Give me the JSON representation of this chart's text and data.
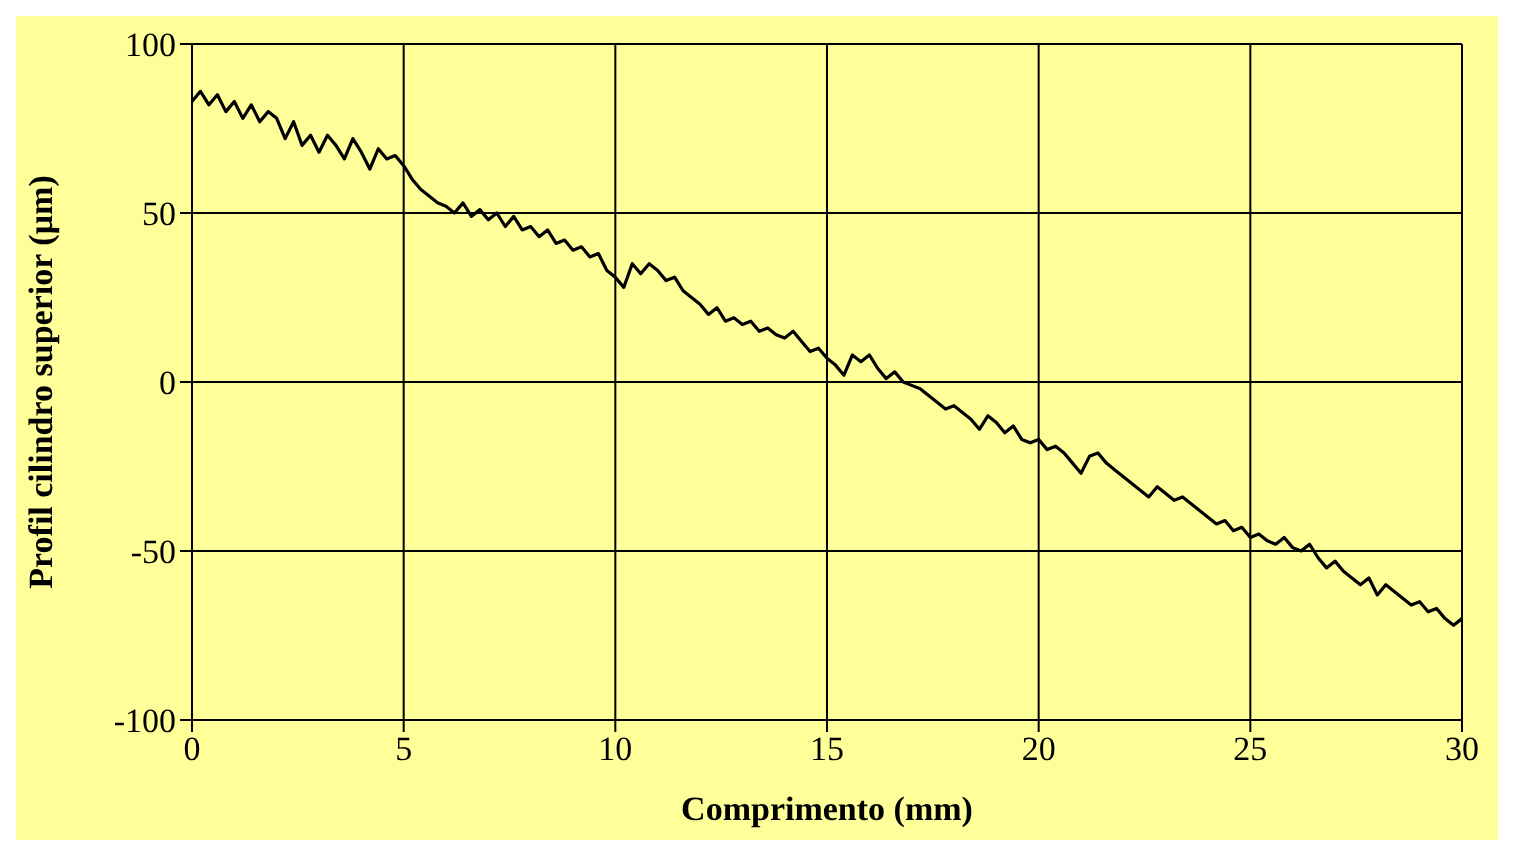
{
  "chart_data": {
    "type": "line",
    "xlabel": "Comprimento (mm)",
    "ylabel": "Profil cilindro superior (µm)",
    "xlim": [
      0,
      30
    ],
    "ylim": [
      -100,
      100
    ],
    "xticks": [
      0,
      5,
      10,
      15,
      20,
      25,
      30
    ],
    "yticks": [
      -100,
      -50,
      0,
      50,
      100
    ],
    "grid": true,
    "marker": "none",
    "line_style": "solid",
    "series": [
      {
        "color": "#000000",
        "x": [
          0,
          0.2,
          0.4,
          0.6,
          0.8,
          1,
          1.2,
          1.4,
          1.6,
          1.8,
          2,
          2.2,
          2.4,
          2.6,
          2.8,
          3,
          3.2,
          3.4,
          3.6,
          3.8,
          4,
          4.2,
          4.4,
          4.6,
          4.8,
          5,
          5.2,
          5.4,
          5.6,
          5.8,
          6,
          6.2,
          6.4,
          6.6,
          6.8,
          7,
          7.2,
          7.4,
          7.6,
          7.8,
          8,
          8.2,
          8.4,
          8.6,
          8.8,
          9,
          9.2,
          9.4,
          9.6,
          9.8,
          10,
          10.2,
          10.4,
          10.6,
          10.8,
          11,
          11.2,
          11.4,
          11.6,
          11.8,
          12,
          12.2,
          12.4,
          12.6,
          12.8,
          13,
          13.2,
          13.4,
          13.6,
          13.8,
          14,
          14.2,
          14.4,
          14.6,
          14.8,
          15,
          15.2,
          15.4,
          15.6,
          15.8,
          16,
          16.2,
          16.4,
          16.6,
          16.8,
          17,
          17.2,
          17.4,
          17.6,
          17.8,
          18,
          18.2,
          18.4,
          18.6,
          18.8,
          19,
          19.2,
          19.4,
          19.6,
          19.8,
          20,
          20.2,
          20.4,
          20.6,
          20.8,
          21,
          21.2,
          21.4,
          21.6,
          21.8,
          22,
          22.2,
          22.4,
          22.6,
          22.8,
          23,
          23.2,
          23.4,
          23.6,
          23.8,
          24,
          24.2,
          24.4,
          24.6,
          24.8,
          25,
          25.2,
          25.4,
          25.6,
          25.8,
          26,
          26.2,
          26.4,
          26.6,
          26.8,
          27,
          27.2,
          27.4,
          27.6,
          27.8,
          28,
          28.2,
          28.4,
          28.6,
          28.8,
          29,
          29.2,
          29.4,
          29.6,
          29.8,
          30
        ],
        "values": [
          83,
          86,
          82,
          85,
          80,
          83,
          78,
          82,
          77,
          80,
          78,
          72,
          77,
          70,
          73,
          68,
          73,
          70,
          66,
          72,
          68,
          63,
          69,
          66,
          67,
          64,
          60,
          57,
          55,
          53,
          52,
          50,
          53,
          49,
          51,
          48,
          50,
          46,
          49,
          45,
          46,
          43,
          45,
          41,
          42,
          39,
          40,
          37,
          38,
          33,
          31,
          28,
          35,
          32,
          35,
          33,
          30,
          31,
          27,
          25,
          23,
          20,
          22,
          18,
          19,
          17,
          18,
          15,
          16,
          14,
          13,
          15,
          12,
          9,
          10,
          7,
          5,
          2,
          8,
          6,
          8,
          4,
          1,
          3,
          0,
          -1,
          -2,
          -4,
          -6,
          -8,
          -7,
          -9,
          -11,
          -14,
          -10,
          -12,
          -15,
          -13,
          -17,
          -18,
          -17,
          -20,
          -19,
          -21,
          -24,
          -27,
          -22,
          -21,
          -24,
          -26,
          -28,
          -30,
          -32,
          -34,
          -31,
          -33,
          -35,
          -34,
          -36,
          -38,
          -40,
          -42,
          -41,
          -44,
          -43,
          -46,
          -45,
          -47,
          -48,
          -46,
          -49,
          -50,
          -48,
          -52,
          -55,
          -53,
          -56,
          -58,
          -60,
          -58,
          -63,
          -60,
          -62,
          -64,
          -66,
          -65,
          -68,
          -67,
          -70,
          -72,
          -70
        ]
      }
    ]
  }
}
